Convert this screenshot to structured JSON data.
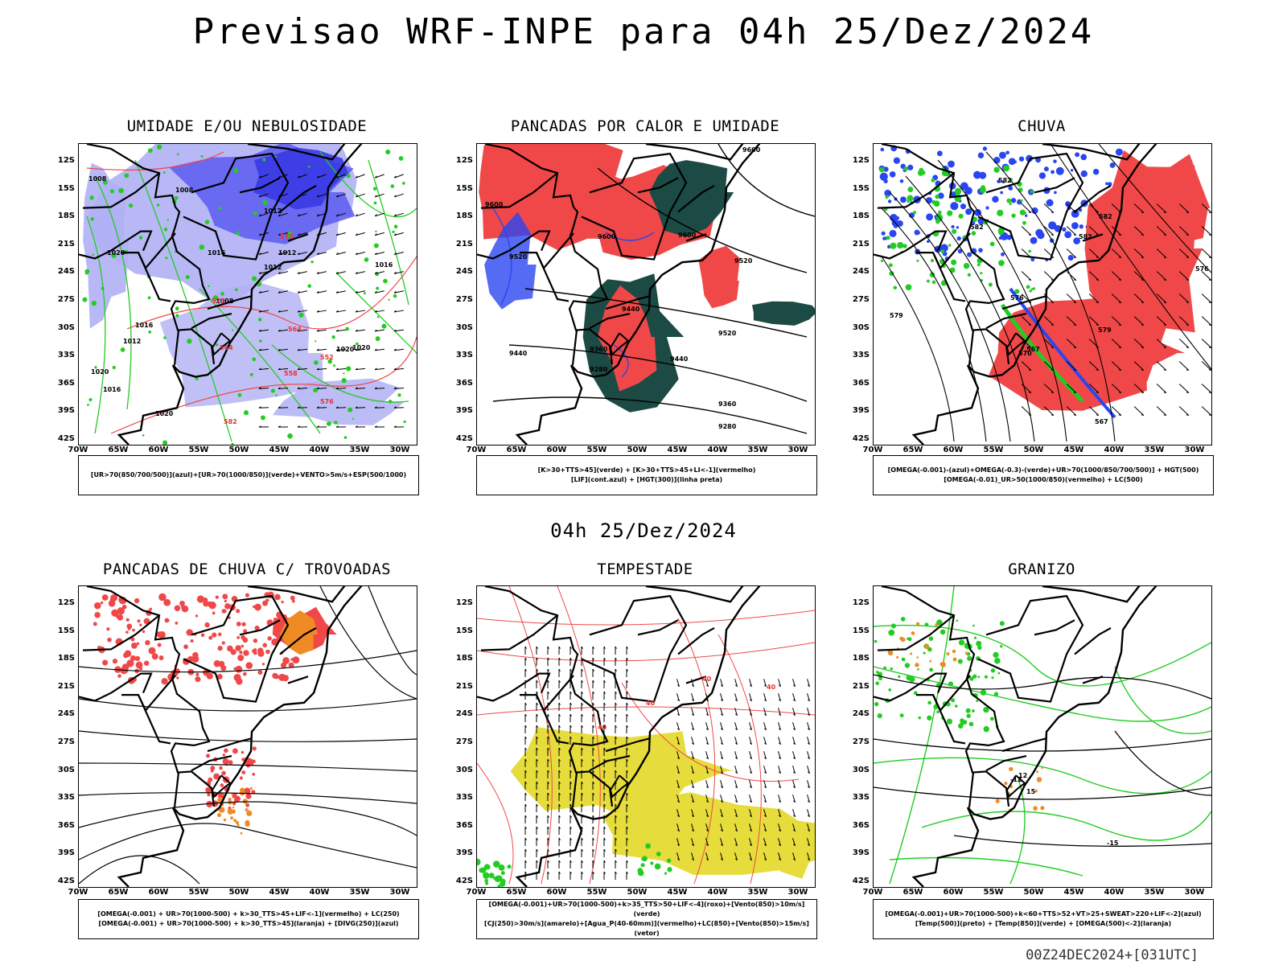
{
  "title": "Previsao WRF-INPE  para 04h 25/Dez/2024",
  "subtitle": "04h 25/Dez/2024",
  "footer": "00Z24DEC2024+[031UTC]",
  "lat_ticks": [
    "12S",
    "15S",
    "18S",
    "21S",
    "24S",
    "27S",
    "30S",
    "33S",
    "36S",
    "39S",
    "42S"
  ],
  "lon_ticks": [
    "70W",
    "65W",
    "60W",
    "55W",
    "50W",
    "45W",
    "40W",
    "35W",
    "30W"
  ],
  "colors": {
    "blue_fill": "#5b5bf0",
    "lightblue_fill": "#b0b0f5",
    "green": "#22cc22",
    "red": "#f04848",
    "darkgreen": "#1c4a44",
    "orange": "#f08a24",
    "yellow": "#e6dc3c",
    "brightblue": "#2a46f0"
  },
  "panels": [
    {
      "title": "UMIDADE E/OU NEBULOSIDADE",
      "legend": [
        "[UR>70(850/700/500)](azul)+[UR>70(1000/850)](verde)+VENTO>5m/s+ESP(500/1000)"
      ],
      "labels": [
        "1008",
        "1008",
        "1012",
        "1012",
        "1016",
        "1020",
        "1008",
        "1012",
        "1016",
        "1020",
        "1012",
        "1016",
        "1020",
        "1020",
        "1016",
        "1020",
        "570",
        "570",
        "564",
        "558",
        "552",
        "582",
        "576",
        "564"
      ]
    },
    {
      "title": "PANCADAS POR CALOR E UMIDADE",
      "legend": [
        "[K>30+TTS>45](verde) + [K>30+TTS>45+LI<-1](vermelho)",
        "[LIF](cont.azul) + [HGT(300)](linha preta)"
      ],
      "labels": [
        "9600",
        "9600",
        "9600",
        "9600",
        "9520",
        "9520",
        "9520",
        "9440",
        "9360",
        "9440",
        "9280",
        "9360",
        "9280",
        "9440"
      ]
    },
    {
      "title": "CHUVA",
      "legend": [
        "[OMEGA(-0.001)-(azul)+OMEGA(-0.3)-(verde)+UR>70(1000/850/700/500)] + HGT(500)",
        "[OMEGA(-0.01)_UR>50(1000/850)(vermelho) + LC(500)"
      ],
      "labels": [
        "582",
        "582",
        "582",
        "582",
        "579",
        "576",
        "579",
        "567",
        "570",
        "567",
        "576"
      ]
    },
    {
      "title": "PANCADAS DE CHUVA C/ TROVOADAS",
      "legend": [
        "[OMEGA(-0.001) + UR>70(1000-500) + k>30_TTS>45+LIF<-1](vermelho) + LC(250)",
        "[OMEGA(-0.001) + UR>70(1000-500) + k>30_TTS>45](laranja) + [DIVG(250)](azul)"
      ],
      "labels": []
    },
    {
      "title": "TEMPESTADE",
      "legend": [
        "[OMEGA(-0.001)+UR>70(1000-500)+k>35_TTS>50+LIF<-4](roxo)+[Vento(850)>10m/s](verde)",
        "[CJ(250)>30m/s](amarelo)+[Agua_P(40-60mm)](vermelho)+LC(850)+[Vento(850)>15m/s](vetor)"
      ],
      "labels": [
        "40",
        "40",
        "40",
        "40"
      ]
    },
    {
      "title": "GRANIZO",
      "legend": [
        "[OMEGA(-0.001)+UR>70(1000-500)+k<60+TTS>52+VT>25+SWEAT>220+LIF<-2](azul)",
        "[Temp(500)](preto) + [Temp(850)](verde) + [OMEGA(500)<-2](laranja)"
      ],
      "labels": [
        "-12",
        "-15",
        "12",
        "15"
      ]
    }
  ]
}
